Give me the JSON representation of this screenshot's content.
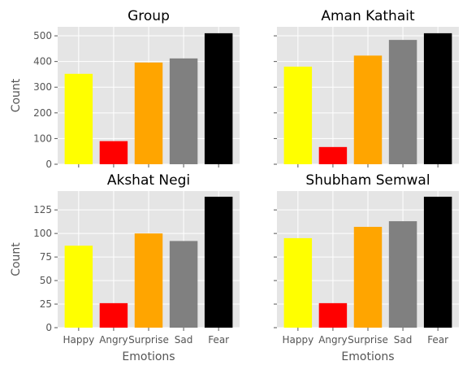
{
  "chart_data": {
    "type": "bar",
    "layout": "2x2 grid, shared x axis per column, shared y axis per row",
    "style": "ggplot (gray panel background, white grid)",
    "categories": [
      "Happy",
      "Angry",
      "Surprise",
      "Sad",
      "Fear"
    ],
    "bar_colors": [
      "#ffff00",
      "#ff0000",
      "#ffa500",
      "#808080",
      "#000000"
    ],
    "panel_background": "#e5e5e5",
    "grid_color": "#ffffff",
    "xlabel": "Emotions",
    "ylabel": "Count",
    "panels": [
      {
        "title": "Group",
        "values": [
          352,
          90,
          396,
          412,
          510
        ],
        "ylim": [
          0,
          535
        ],
        "yticks": [
          0,
          100,
          200,
          300,
          400,
          500
        ],
        "show_ytick_labels": true,
        "show_ylabel": true,
        "show_xtick_labels": false,
        "show_xlabel": false
      },
      {
        "title": "Aman Kathait",
        "values": [
          380,
          67,
          423,
          484,
          510
        ],
        "ylim": [
          0,
          535
        ],
        "yticks": [
          0,
          100,
          200,
          300,
          400,
          500
        ],
        "show_ytick_labels": false,
        "show_ylabel": false,
        "show_xtick_labels": false,
        "show_xlabel": false
      },
      {
        "title": "Akshat Negi",
        "values": [
          87,
          26,
          100,
          92,
          139
        ],
        "ylim": [
          0,
          145
        ],
        "yticks": [
          0,
          25,
          50,
          75,
          100,
          125
        ],
        "show_ytick_labels": true,
        "show_ylabel": true,
        "show_xtick_labels": true,
        "show_xlabel": true
      },
      {
        "title": "Shubham Semwal",
        "values": [
          95,
          26,
          107,
          113,
          139
        ],
        "ylim": [
          0,
          145
        ],
        "yticks": [
          0,
          25,
          50,
          75,
          100,
          125
        ],
        "show_ytick_labels": false,
        "show_ylabel": false,
        "show_xtick_labels": true,
        "show_xlabel": true
      }
    ]
  }
}
